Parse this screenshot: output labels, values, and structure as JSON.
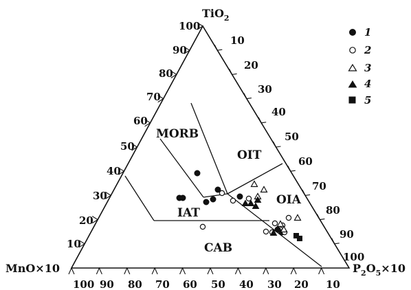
{
  "vertices": {
    "top": {
      "main": "TiO",
      "sub": "2",
      "tail": ""
    },
    "left": {
      "main": "MnO×10",
      "sub": "",
      "tail": ""
    },
    "right": {
      "main": "P",
      "sub": "2",
      "mid": "O",
      "sub2": "5",
      "tail": "×10"
    }
  },
  "ticks": {
    "left_side": [
      "100",
      "90",
      "80",
      "70",
      "60",
      "50",
      "40",
      "30",
      "20",
      "10"
    ],
    "right_side": [
      "10",
      "20",
      "30",
      "40",
      "50",
      "60",
      "70",
      "80",
      "90",
      "100"
    ],
    "bottom": [
      "100",
      "90",
      "80",
      "70",
      "60",
      "50",
      "40",
      "30",
      "20",
      "10"
    ]
  },
  "fields": [
    "MORB",
    "OIT",
    "OIA",
    "IAT",
    "CAB"
  ],
  "legend": [
    {
      "label": "1",
      "marker": "filled-circle"
    },
    {
      "label": "2",
      "marker": "open-circle"
    },
    {
      "label": "3",
      "marker": "open-triangle"
    },
    {
      "label": "4",
      "marker": "filled-triangle"
    },
    {
      "label": "5",
      "marker": "filled-square"
    }
  ]
}
